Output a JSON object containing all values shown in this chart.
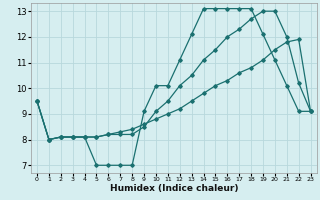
{
  "title": "",
  "xlabel": "Humidex (Indice chaleur)",
  "ylabel": "",
  "xlim": [
    -0.5,
    23.5
  ],
  "ylim": [
    6.7,
    13.3
  ],
  "yticks": [
    7,
    8,
    9,
    10,
    11,
    12,
    13
  ],
  "xticks": [
    0,
    1,
    2,
    3,
    4,
    5,
    6,
    7,
    8,
    9,
    10,
    11,
    12,
    13,
    14,
    15,
    16,
    17,
    18,
    19,
    20,
    21,
    22,
    23
  ],
  "bg_color": "#d6eef0",
  "grid_color": "#b8d8dc",
  "line_color": "#1a7070",
  "series": [
    {
      "x": [
        0,
        1,
        2,
        3,
        4,
        5,
        6,
        7,
        8,
        9,
        10,
        11,
        12,
        13,
        14,
        15,
        16,
        17,
        18,
        19,
        20,
        21,
        22,
        23
      ],
      "y": [
        9.5,
        8.0,
        8.1,
        8.1,
        8.1,
        7.0,
        7.0,
        7.0,
        7.0,
        9.1,
        10.1,
        10.1,
        11.1,
        12.1,
        13.1,
        13.1,
        13.1,
        13.1,
        13.1,
        12.1,
        11.1,
        10.1,
        9.1,
        9.1
      ]
    },
    {
      "x": [
        0,
        1,
        2,
        3,
        4,
        5,
        6,
        7,
        8,
        9,
        10,
        11,
        12,
        13,
        14,
        15,
        16,
        17,
        18,
        19,
        20,
        21,
        22,
        23
      ],
      "y": [
        9.5,
        8.0,
        8.1,
        8.1,
        8.1,
        8.1,
        8.2,
        8.2,
        8.2,
        8.5,
        9.1,
        9.5,
        10.1,
        10.5,
        11.1,
        11.5,
        12.0,
        12.3,
        12.7,
        13.0,
        13.0,
        12.0,
        10.2,
        9.1
      ]
    },
    {
      "x": [
        0,
        1,
        2,
        3,
        4,
        5,
        6,
        7,
        8,
        9,
        10,
        11,
        12,
        13,
        14,
        15,
        16,
        17,
        18,
        19,
        20,
        21,
        22,
        23
      ],
      "y": [
        9.5,
        8.0,
        8.1,
        8.1,
        8.1,
        8.1,
        8.2,
        8.3,
        8.4,
        8.6,
        8.8,
        9.0,
        9.2,
        9.5,
        9.8,
        10.1,
        10.3,
        10.6,
        10.8,
        11.1,
        11.5,
        11.8,
        11.9,
        9.1
      ]
    }
  ]
}
